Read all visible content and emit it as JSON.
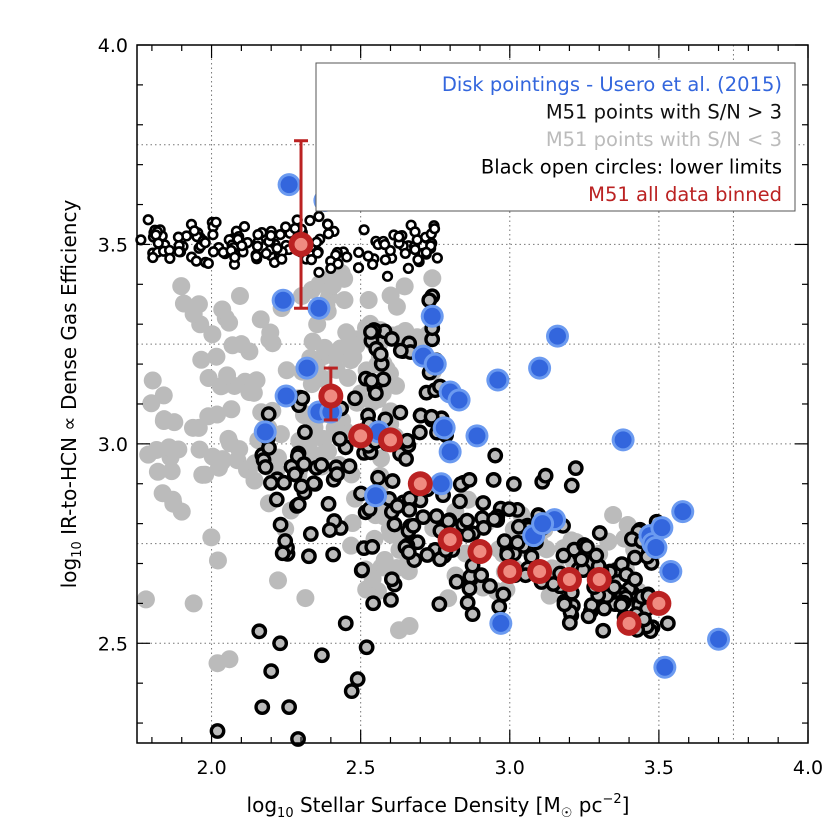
{
  "chart_data": {
    "type": "scatter",
    "xlabel": {
      "prefix": "log",
      "prefix_sub": "10",
      "main": " Stellar Surface Density [M",
      "sun": "☉",
      "unit": " pc",
      "unit_sup": "−2",
      "close": "]"
    },
    "ylabel": {
      "prefix": "log",
      "prefix_sub": "10",
      "main": " IR-to-HCN ∝ Dense Gas Efficiency"
    },
    "xlim": [
      1.75,
      4.0
    ],
    "ylim": [
      2.25,
      4.0
    ],
    "xticks": [
      "2.0",
      "2.5",
      "3.0",
      "3.5",
      "4.0"
    ],
    "yticks": [
      "2.5",
      "3.0",
      "3.5",
      "4.0"
    ],
    "grid": true,
    "legend_position": "top-right",
    "colors": {
      "disk": "#3366dd",
      "disk_ring": "#6b9af0",
      "sn_high": "#000000",
      "sn_low": "#bbbbbb",
      "binned": "#bb2222",
      "binned_inner": "#f08a80"
    },
    "legend": [
      {
        "text": "Disk pointings - Usero et al. (2015)",
        "color": "#3366dd"
      },
      {
        "text": "M51 points with S/N > 3",
        "color": "#111111"
      },
      {
        "text": "M51 points with S/N < 3",
        "color": "#bbbbbb"
      },
      {
        "text": "Black open circles: lower limits",
        "color": "#000000"
      },
      {
        "text": "M51 all data binned",
        "color": "#bb2222"
      }
    ],
    "series": [
      {
        "name": "Disk pointings - Usero et al. (2015)",
        "style": "blue",
        "points": [
          [
            2.26,
            3.65
          ],
          [
            2.38,
            3.61
          ],
          [
            2.24,
            3.36
          ],
          [
            2.36,
            3.34
          ],
          [
            2.74,
            3.32
          ],
          [
            2.71,
            3.22
          ],
          [
            2.75,
            3.2
          ],
          [
            2.32,
            3.19
          ],
          [
            2.25,
            3.12
          ],
          [
            2.8,
            3.13
          ],
          [
            2.83,
            3.11
          ],
          [
            2.36,
            3.08
          ],
          [
            2.4,
            3.08
          ],
          [
            2.18,
            3.03
          ],
          [
            2.56,
            3.03
          ],
          [
            2.78,
            3.04
          ],
          [
            2.8,
            2.98
          ],
          [
            2.89,
            3.02
          ],
          [
            2.96,
            3.16
          ],
          [
            3.1,
            3.19
          ],
          [
            3.16,
            3.27
          ],
          [
            3.38,
            3.01
          ],
          [
            2.77,
            2.9
          ],
          [
            2.55,
            2.87
          ],
          [
            3.08,
            2.77
          ],
          [
            3.15,
            2.81
          ],
          [
            3.11,
            2.8
          ],
          [
            3.47,
            2.77
          ],
          [
            3.48,
            2.75
          ],
          [
            3.49,
            2.74
          ],
          [
            3.51,
            2.79
          ],
          [
            3.58,
            2.83
          ],
          [
            3.54,
            2.68
          ],
          [
            2.97,
            2.55
          ],
          [
            3.52,
            2.44
          ],
          [
            3.7,
            2.51
          ]
        ]
      },
      {
        "name": "M51 all data binned",
        "style": "red",
        "points": [
          [
            2.3,
            3.5
          ],
          [
            2.4,
            3.12
          ],
          [
            2.5,
            3.02
          ],
          [
            2.6,
            3.01
          ],
          [
            2.7,
            2.9
          ],
          [
            2.8,
            2.76
          ],
          [
            2.9,
            2.73
          ],
          [
            3.0,
            2.68
          ],
          [
            3.1,
            2.68
          ],
          [
            3.2,
            2.66
          ],
          [
            3.3,
            2.66
          ],
          [
            3.4,
            2.55
          ],
          [
            3.5,
            2.6
          ]
        ],
        "error_bars": [
          {
            "x": 2.3,
            "low": 3.34,
            "high": 3.76
          },
          {
            "x": 2.4,
            "low": 3.06,
            "high": 3.19
          }
        ]
      },
      {
        "name": "M51 points with S/N < 3",
        "style": "gray",
        "points": []
      },
      {
        "name": "Black open circles: lower limits",
        "style": "black",
        "points": []
      }
    ]
  }
}
